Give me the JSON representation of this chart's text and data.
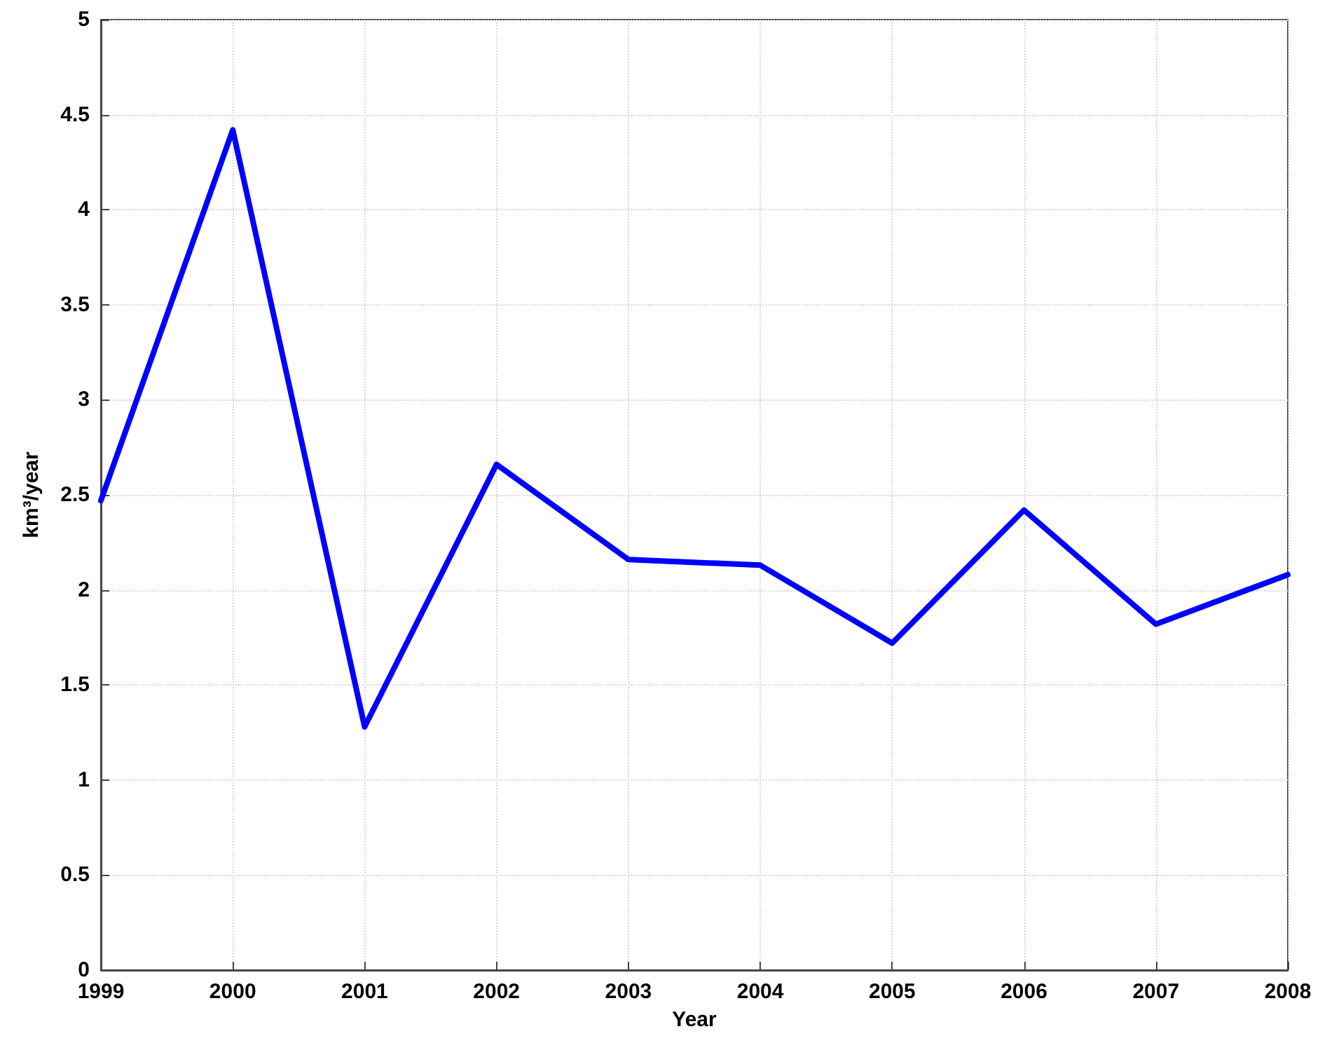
{
  "chart_data": {
    "type": "line",
    "xlabel": "Year",
    "ylabel": "km³/year",
    "x": [
      1999,
      2000,
      2001,
      2002,
      2003,
      2004,
      2005,
      2006,
      2007,
      2008
    ],
    "series": [
      {
        "color": "#0000ff",
        "values": [
          2.47,
          4.42,
          1.28,
          2.66,
          2.16,
          2.13,
          1.72,
          2.42,
          1.82,
          2.08
        ]
      }
    ],
    "xlim": [
      1999,
      2008
    ],
    "xticks": [
      1999,
      2000,
      2001,
      2002,
      2003,
      2004,
      2005,
      2006,
      2007,
      2008
    ],
    "ylim": [
      0,
      5
    ],
    "yticks": [
      0,
      0.5,
      1,
      1.5,
      2,
      2.5,
      3,
      3.5,
      4,
      4.5,
      5
    ],
    "grid": true,
    "marker": "none",
    "line_style": "solid"
  }
}
